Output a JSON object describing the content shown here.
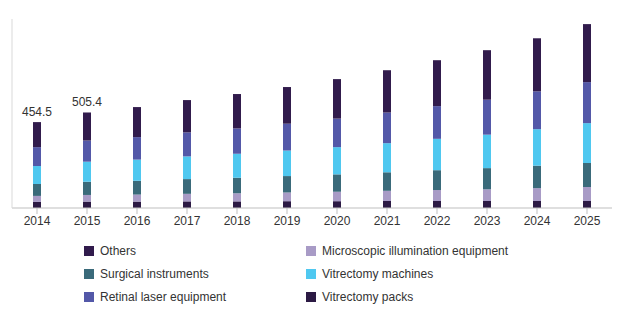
{
  "chart_data": {
    "type": "bar",
    "stacked": true,
    "tick_labels": "x",
    "grid": false,
    "legend": "bottom",
    "categories": [
      "2014",
      "2015",
      "2016",
      "2017",
      "2018",
      "2019",
      "2020",
      "2021",
      "2022",
      "2023",
      "2024",
      "2025"
    ],
    "ylim": [
      0,
      1000
    ],
    "series": [
      {
        "name": "Vitrectomy packs",
        "color": "#2c1a44",
        "values": [
          32,
          34,
          34,
          35,
          35,
          36,
          36,
          37,
          37,
          37,
          37,
          37
        ]
      },
      {
        "name": "Microscopic illumination equipment",
        "color": "#a89bc6",
        "values": [
          32,
          35,
          37,
          40,
          43,
          46,
          50,
          54,
          58,
          62,
          68,
          74
        ]
      },
      {
        "name": "Surgical instruments",
        "color": "#3a6a7a",
        "values": [
          63,
          70,
          73,
          78,
          82,
          87,
          92,
          98,
          105,
          112,
          119,
          127
        ]
      },
      {
        "name": "Vitrectomy machines",
        "color": "#4fc8f0",
        "values": [
          95,
          106,
          112,
          120,
          127,
          135,
          144,
          154,
          166,
          177,
          193,
          211
        ]
      },
      {
        "name": "Retinal laser equipment",
        "color": "#5358a8",
        "values": [
          100,
          112,
          119,
          127,
          134,
          142,
          151,
          162,
          173,
          185,
          200,
          217
        ]
      },
      {
        "name": "Others",
        "color": "#311b4c",
        "values": [
          132.5,
          148.4,
          159,
          171,
          182,
          194,
          209,
          224,
          243,
          262,
          281,
          307
        ]
      }
    ],
    "annotations": [
      {
        "x": "2014",
        "value": 454.5,
        "text": "454.5"
      },
      {
        "x": "2015",
        "value": 505.4,
        "text": "505.4"
      }
    ]
  }
}
